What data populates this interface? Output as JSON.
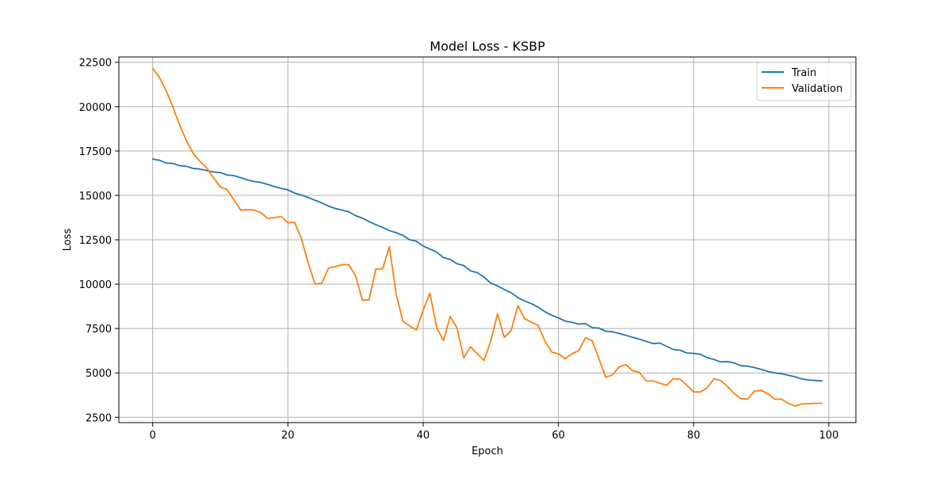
{
  "chart_data": {
    "type": "line",
    "title": "Model Loss - KSBP",
    "xlabel": "Epoch",
    "ylabel": "Loss",
    "xlim": [
      -5,
      104
    ],
    "ylim": [
      2200,
      22800
    ],
    "xticks": [
      0,
      20,
      40,
      60,
      80,
      100
    ],
    "yticks": [
      2500,
      5000,
      7500,
      10000,
      12500,
      15000,
      17500,
      20000,
      22500
    ],
    "grid": true,
    "legend_position": "top-right",
    "colors": {
      "Train": "#1f77b4",
      "Validation": "#ff7f0e"
    },
    "x": [
      0,
      1,
      2,
      3,
      4,
      5,
      6,
      7,
      8,
      9,
      10,
      11,
      12,
      13,
      14,
      15,
      16,
      17,
      18,
      19,
      20,
      21,
      22,
      23,
      24,
      25,
      26,
      27,
      28,
      29,
      30,
      31,
      32,
      33,
      34,
      35,
      36,
      37,
      38,
      39,
      40,
      41,
      42,
      43,
      44,
      45,
      46,
      47,
      48,
      49,
      50,
      51,
      52,
      53,
      54,
      55,
      56,
      57,
      58,
      59,
      60,
      61,
      62,
      63,
      64,
      65,
      66,
      67,
      68,
      69,
      70,
      71,
      72,
      73,
      74,
      75,
      76,
      77,
      78,
      79,
      80,
      81,
      82,
      83,
      84,
      85,
      86,
      87,
      88,
      89,
      90,
      91,
      92,
      93,
      94,
      95,
      96,
      97,
      98,
      99
    ],
    "series": [
      {
        "name": "Train",
        "values": [
          17050,
          16980,
          16830,
          16800,
          16680,
          16640,
          16520,
          16480,
          16400,
          16320,
          16290,
          16150,
          16120,
          16000,
          15880,
          15780,
          15730,
          15620,
          15500,
          15400,
          15310,
          15130,
          15020,
          14880,
          14730,
          14580,
          14400,
          14260,
          14170,
          14080,
          13860,
          13720,
          13520,
          13350,
          13200,
          13020,
          12900,
          12750,
          12500,
          12420,
          12150,
          11980,
          11800,
          11500,
          11400,
          11150,
          11050,
          10750,
          10650,
          10400,
          10050,
          9900,
          9700,
          9520,
          9250,
          9050,
          8900,
          8700,
          8450,
          8250,
          8100,
          7920,
          7850,
          7750,
          7780,
          7550,
          7530,
          7350,
          7320,
          7220,
          7120,
          7000,
          6900,
          6780,
          6650,
          6680,
          6500,
          6320,
          6280,
          6120,
          6100,
          6050,
          5860,
          5760,
          5620,
          5640,
          5560,
          5400,
          5380,
          5300,
          5200,
          5080,
          5000,
          4950,
          4870,
          4780,
          4660,
          4600,
          4570,
          4550
        ]
      },
      {
        "name": "Validation",
        "values": [
          22150,
          21650,
          20900,
          19950,
          18950,
          18080,
          17350,
          16920,
          16550,
          15990,
          15480,
          15330,
          14760,
          14180,
          14200,
          14180,
          14030,
          13700,
          13750,
          13810,
          13460,
          13480,
          12560,
          11180,
          10010,
          10050,
          10900,
          10990,
          11100,
          11100,
          10480,
          9100,
          9120,
          10850,
          10870,
          12110,
          9460,
          7920,
          7650,
          7420,
          8530,
          9490,
          7550,
          6830,
          8180,
          7540,
          5850,
          6470,
          6080,
          5700,
          6800,
          8330,
          7000,
          7380,
          8790,
          8060,
          7860,
          7670,
          6810,
          6170,
          6080,
          5800,
          6080,
          6250,
          6980,
          6810,
          5800,
          4750,
          4890,
          5350,
          5460,
          5120,
          5020,
          4540,
          4550,
          4420,
          4300,
          4670,
          4650,
          4310,
          3930,
          3920,
          4160,
          4660,
          4570,
          4230,
          3840,
          3550,
          3520,
          3980,
          4020,
          3820,
          3520,
          3520,
          3290,
          3130,
          3250,
          3270,
          3290,
          3290
        ]
      }
    ]
  }
}
